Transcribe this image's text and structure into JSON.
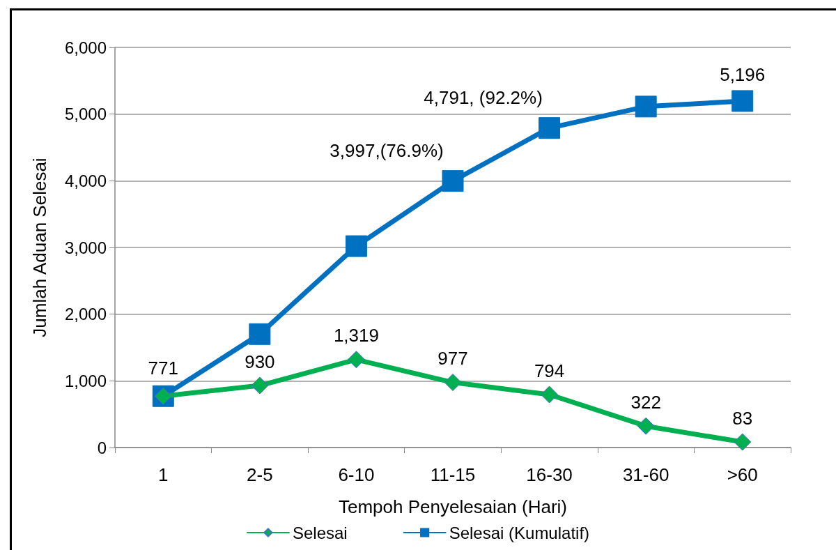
{
  "chart_data": {
    "type": "line",
    "xlabel": "Tempoh Penyelesaian (Hari)",
    "ylabel": "Jumlah Aduan Selesai",
    "categories": [
      "1",
      "2-5",
      "6-10",
      "11-15",
      "16-30",
      "31-60",
      ">60"
    ],
    "series": [
      {
        "name": "Selesai",
        "color": "#00b050",
        "marker": "diamond",
        "values": [
          771,
          930,
          1319,
          977,
          794,
          322,
          83
        ],
        "value_labels": [
          "771",
          "930",
          "1,319",
          "977",
          "794",
          "322",
          "83"
        ]
      },
      {
        "name": "Selesai (Kumulatif)",
        "color": "#0070c0",
        "marker": "square",
        "values": [
          771,
          1701,
          3020,
          3997,
          4791,
          5113,
          5196
        ],
        "value_labels": [
          null,
          null,
          null,
          "3,997,(76.9%)",
          "4,791, (92.2%)",
          null,
          "5,196"
        ]
      }
    ],
    "ylim": [
      0,
      6000
    ],
    "yticks": [
      0,
      {
        "value": 1000,
        "label": "1,000"
      },
      {
        "value": 2000,
        "label": "2,000"
      },
      {
        "value": 3000,
        "label": "3,000"
      },
      {
        "value": 4000,
        "label": "4,000"
      },
      {
        "value": 5000,
        "label": "5,000"
      },
      {
        "value": 6000,
        "label": "6,000"
      }
    ],
    "grid": "y",
    "legend": "bottom",
    "line_style": "solid"
  }
}
